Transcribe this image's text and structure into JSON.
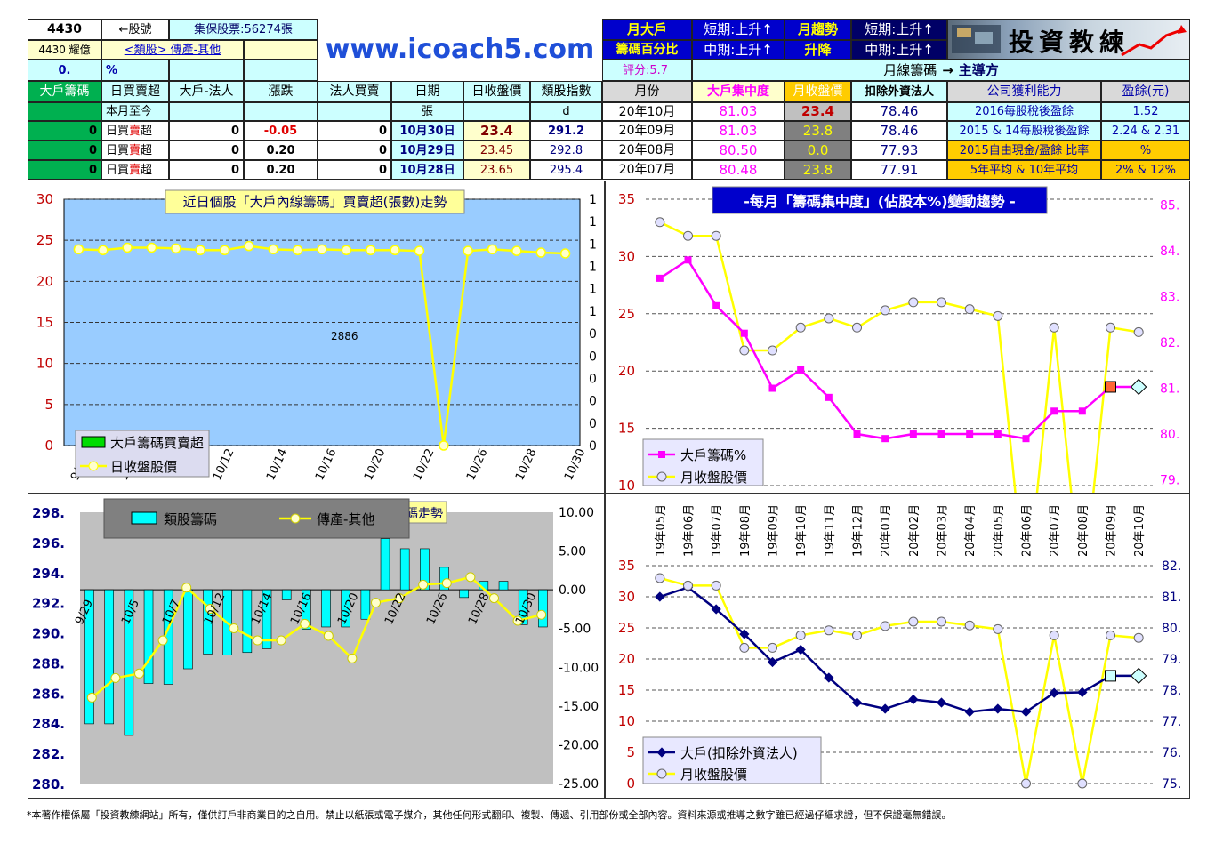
{
  "header": {
    "stock_code": "4430",
    "stock_code_label": "←股號",
    "margin_label": "集保股票:56274張",
    "capital": "4430 耀億",
    "category": "<類股> 傳產-其他",
    "zero_val": "0.",
    "percent": "%",
    "site": "www.icoach5.com",
    "m1": "月大戶",
    "m2": "籌碼百分比",
    "short1": "短期:上升↑",
    "mid1": "中期:上升↑",
    "m3": "月趨勢",
    "m4": "升降",
    "short2": "短期:上升↑",
    "mid2": "中期:上升↑",
    "logo": "投資教練",
    "score": "評分:5.7",
    "dominant_prefix": "月線籌碼",
    "dominant": "主導方"
  },
  "table_left": {
    "headers": [
      "大戶籌碼",
      "日買賣超",
      "大戶-法人",
      "漲跌",
      "法人買賣",
      "日期",
      "日收盤價",
      "類股指數"
    ],
    "row0": [
      "",
      "本月至今",
      "",
      "",
      "",
      "張",
      "",
      "d"
    ],
    "rows": [
      {
        "a": "0",
        "b1": "日買",
        "b2": "賣",
        "b3": "超",
        "c": "0",
        "d": "-0.05",
        "e": "0",
        "f": "10月30日",
        "g": "23.4",
        "h": "291.2"
      },
      {
        "a": "0",
        "b1": "日買",
        "b2": "賣",
        "b3": "超",
        "c": "0",
        "d": "0.20",
        "e": "0",
        "f": "10月29日",
        "g": "23.45",
        "h": "292.8"
      },
      {
        "a": "0",
        "b1": "日買",
        "b2": "賣",
        "b3": "超",
        "c": "0",
        "d": "0.20",
        "e": "0",
        "f": "10月28日",
        "g": "23.65",
        "h": "295.4"
      }
    ]
  },
  "table_right": {
    "headers": [
      "月份",
      "大戶集中度",
      "月收盤價",
      "扣除外資法人",
      "公司獲利能力",
      "盈餘(元)"
    ],
    "rows": [
      [
        "20年10月",
        "81.03",
        "23.4",
        "78.46",
        "2016每股稅後盈餘",
        "1.52"
      ],
      [
        "20年09月",
        "81.03",
        "23.8",
        "78.46",
        "2015 & 14每股稅後盈餘",
        "2.24 & 2.31"
      ],
      [
        "20年08月",
        "80.50",
        "0.0",
        "77.93",
        "2015自由現金/盈餘 比率",
        "%"
      ],
      [
        "20年07月",
        "80.48",
        "23.8",
        "77.91",
        "5年平均 & 10年平均",
        "2% & 12%"
      ]
    ]
  },
  "colors": {
    "yellow": "#ffff00",
    "magenta": "#ff00ff",
    "navy": "#000080",
    "cyan": "#00ffff",
    "plotblue": "#99ccff",
    "plotgray": "#c0c0c0"
  },
  "footer": "*本著作權係屬「投資教練網站」所有，僅供訂戶非商業目的之自用。禁止以紙張或電子媒介，其他任何形式翻印、複製、傳遞、引用部份或全部內容。資料來源或推導之數字雖已經過仔細求證，但不保證毫無錯誤。",
  "chart_data": [
    {
      "type": "line",
      "title": "近日個股「大戶內線籌碼」買賣超(張數)走勢",
      "ylim": [
        0,
        30
      ],
      "yticks": [
        "0",
        "5",
        "10",
        "15",
        "20",
        "25",
        "30"
      ],
      "right_ticks": [
        "0",
        "0",
        "0",
        "0",
        "0",
        "0",
        "1",
        "1",
        "1",
        "1",
        "1",
        "1"
      ],
      "xticks": [
        "9/",
        "1",
        "10/12",
        "10/14",
        "10/16",
        "10/20",
        "10/22",
        "10/26",
        "10/28",
        "10/30"
      ],
      "annotation": "2886",
      "legend": [
        "大戶籌碼買賣超",
        "日收盤股價"
      ],
      "series": [
        {
          "name": "日收盤股價",
          "values": [
            23.9,
            23.8,
            24.1,
            24.1,
            24.0,
            23.8,
            23.8,
            24.3,
            23.9,
            23.8,
            23.9,
            23.8,
            23.8,
            23.8,
            23.7,
            0,
            23.7,
            23.9,
            23.7,
            23.5,
            23.4
          ]
        }
      ]
    },
    {
      "type": "line",
      "title": "-每月「籌碼集中度」(佔股本%)變動趨勢 -",
      "ylim": [
        10,
        35
      ],
      "yticks": [
        "10",
        "15",
        "20",
        "25",
        "30",
        "35"
      ],
      "y2lim": [
        79,
        85
      ],
      "y2ticks": [
        "79.",
        "80.",
        "81.",
        "82.",
        "83.",
        "84.",
        "85."
      ],
      "categories": [
        "19年05月",
        "19年06月",
        "19年07月",
        "19年08月",
        "19年09月",
        "19年10月",
        "19年11月",
        "19年12月",
        "20年01月",
        "20年02月",
        "20年03月",
        "20年04月",
        "20年05月",
        "20年06月",
        "20年07月",
        "20年08月",
        "20年09月",
        "20年10月"
      ],
      "legend": [
        "大戶籌碼%",
        "月收盤股價"
      ],
      "series": [
        {
          "name": "大戶籌碼%",
          "values": [
            83.4,
            83.8,
            82.8,
            82.2,
            81.0,
            81.4,
            80.8,
            80.0,
            79.9,
            80.0,
            80.0,
            80.0,
            80.0,
            79.9,
            80.5,
            80.5,
            81.03,
            81.03
          ]
        },
        {
          "name": "月收盤股價",
          "values": [
            33.0,
            31.8,
            31.8,
            21.8,
            21.8,
            23.8,
            24.6,
            23.8,
            25.3,
            26.0,
            26.0,
            25.4,
            24.8,
            0,
            23.8,
            0,
            23.8,
            23.4
          ]
        }
      ]
    },
    {
      "type": "bar",
      "title": "類股籌碼走勢",
      "ylim": [
        280,
        298
      ],
      "yticks": [
        "280.",
        "282.",
        "284.",
        "286.",
        "288.",
        "290.",
        "292.",
        "294.",
        "296.",
        "298."
      ],
      "y2lim": [
        -25,
        10
      ],
      "y2ticks": [
        "-25.00",
        "-20.00",
        "-15.00",
        "-10.00",
        "-5.00",
        "0.00",
        "5.00",
        "10.00"
      ],
      "xticks": [
        "9/29",
        "10/5",
        "10/7",
        "10/12",
        "10/14",
        "10/16",
        "10/20",
        "10/22",
        "10/26",
        "10/28",
        "10/30"
      ],
      "legend": [
        "類股籌碼",
        "傳產-其他"
      ],
      "series": [
        {
          "name": "類股籌碼",
          "values": [
            -17.3,
            -17.3,
            -18.8,
            -12.1,
            -12.2,
            -10.2,
            -8.3,
            -8.4,
            -8.1,
            -7.6,
            -1.3,
            -5.1,
            -4.8,
            -4.8,
            -3.8,
            6.6,
            5.3,
            5.3,
            2.9,
            -1.0,
            1.1,
            1.1,
            -4.5,
            -4.8
          ]
        },
        {
          "name": "傳產-其他",
          "values": [
            285.7,
            287.0,
            287.3,
            289.5,
            293.0,
            291.6,
            290.3,
            289.5,
            289.5,
            290.6,
            289.8,
            288.3,
            292.0,
            292.3,
            293.2,
            293.3,
            293.7,
            292.3,
            290.8,
            291.2
          ]
        }
      ]
    },
    {
      "type": "line",
      "title": "",
      "ylim": [
        0,
        35
      ],
      "yticks": [
        "0",
        "5",
        "10",
        "15",
        "20",
        "25",
        "30",
        "35"
      ],
      "y2lim": [
        75,
        82
      ],
      "y2ticks": [
        "75.",
        "76.",
        "77.",
        "78.",
        "79.",
        "80.",
        "81.",
        "82."
      ],
      "legend": [
        "大戶(扣除外資法人)",
        "月收盤股價"
      ],
      "series": [
        {
          "name": "大戶(扣除外資法人)",
          "values": [
            81.0,
            81.3,
            80.6,
            79.8,
            78.9,
            79.3,
            78.4,
            77.6,
            77.4,
            77.7,
            77.6,
            77.3,
            77.4,
            77.3,
            77.91,
            77.93,
            78.46,
            78.46
          ]
        },
        {
          "name": "月收盤股價",
          "values": [
            33.0,
            31.8,
            31.8,
            21.8,
            21.8,
            23.8,
            24.6,
            23.8,
            25.3,
            26.0,
            26.0,
            25.4,
            24.8,
            0,
            23.8,
            0,
            23.8,
            23.4
          ]
        }
      ]
    }
  ]
}
